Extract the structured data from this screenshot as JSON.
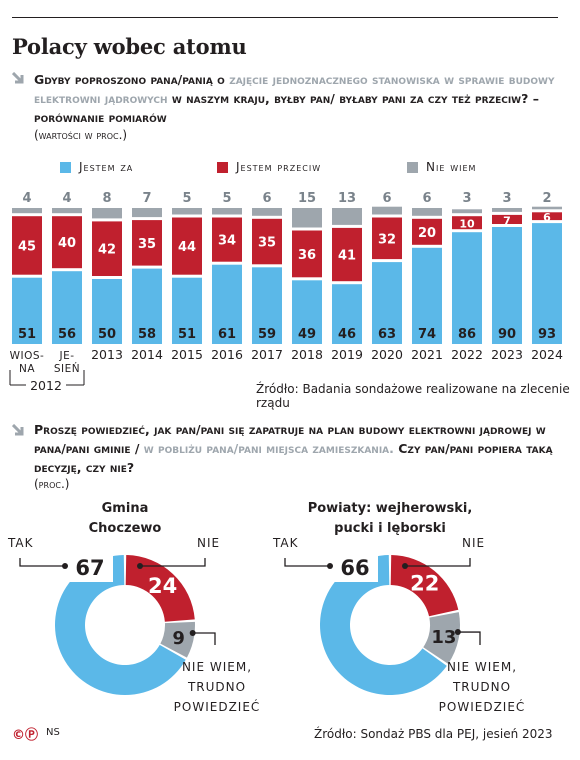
{
  "title": "Polacy wobec atomu",
  "q1": {
    "text_a": "Gdyby poproszono pana/panią o ",
    "text_hl": "zajęcie jednoznacznego stanowiska w sprawie budowy elektrowni jądrowych",
    "text_b": " w naszym kraju, byłby pan/ byłaby pani za czy też przeciw? – porównanie pomiarów",
    "sub": "(wartości w proc.)"
  },
  "legend": [
    {
      "label": "Jestem za",
      "color": "#5bb8e8"
    },
    {
      "label": "Jestem przeciw",
      "color": "#c0202e"
    },
    {
      "label": "Nie wiem",
      "color": "#9ea6ad"
    }
  ],
  "colors": {
    "za": "#5bb8e8",
    "przeciw": "#c0202e",
    "niewiem": "#9ea6ad"
  },
  "chart_data": [
    {
      "type": "bar",
      "stacked": true,
      "title": "Gdyby poproszono pana/panią o zajęcie jednoznacznego stanowiska w sprawie budowy elektrowni jądrowych w naszym kraju, byłby pan/ byłaby pani za czy też przeciw? – porównanie pomiarów",
      "ylabel": "(wartości w proc.)",
      "categories": [
        "wiosna 2012",
        "jesień 2012",
        "2013",
        "2014",
        "2015",
        "2016",
        "2017",
        "2018",
        "2019",
        "2020",
        "2021",
        "2022",
        "2023",
        "2024"
      ],
      "tick_labels": [
        "WIOS-\nNA",
        "JE-\nSIEŃ",
        "2013",
        "2014",
        "2015",
        "2016",
        "2017",
        "2018",
        "2019",
        "2020",
        "2021",
        "2022",
        "2023",
        "2024"
      ],
      "group_label": "2012",
      "series": [
        {
          "name": "Jestem za",
          "values": [
            51,
            56,
            50,
            58,
            51,
            61,
            59,
            49,
            46,
            63,
            74,
            86,
            90,
            93
          ]
        },
        {
          "name": "Jestem przeciw",
          "values": [
            45,
            40,
            42,
            35,
            44,
            34,
            35,
            36,
            41,
            32,
            20,
            10,
            7,
            6
          ]
        },
        {
          "name": "Nie wiem",
          "values": [
            4,
            4,
            8,
            7,
            5,
            5,
            6,
            15,
            13,
            6,
            6,
            3,
            3,
            2
          ]
        }
      ],
      "ylim": [
        0,
        100
      ],
      "grid": false,
      "legend": "top"
    },
    {
      "type": "pie",
      "donut": true,
      "title": "Gmina Choczewo",
      "labels": [
        "Tak",
        "Nie",
        "Nie wiem, trudno powiedzieć"
      ],
      "values": [
        67,
        24,
        9
      ]
    },
    {
      "type": "pie",
      "donut": true,
      "title": "Powiaty: wejherowski, pucki i lęborski",
      "labels": [
        "Tak",
        "Nie",
        "Nie wiem, trudno powiedzieć"
      ],
      "values": [
        66,
        22,
        13
      ]
    }
  ],
  "source1": "Źródło: Badania sondażowe realizowane na zlecenie rządu",
  "q2": {
    "text_a": "Proszę powiedzieć, jak pan/pani się zapatruje na plan budowy elektrowni jądrowej w pana/pani gminie / ",
    "text_hl": "w pobliżu pana/pani miejsca zamieszkania.",
    "text_b": " Czy pan/pani popiera taką decyzję, czy nie?",
    "sub": "(proc.)"
  },
  "donut_titles": [
    [
      "Gmina",
      "Choczewo"
    ],
    [
      "Powiaty: wejherowski,",
      "pucki i lęborski"
    ]
  ],
  "donut_labels": {
    "tak": "Tak",
    "nie": "Nie",
    "niewiem": [
      "Nie wiem,",
      "trudno",
      "powiedzieć"
    ]
  },
  "source2": "Źródło: Sondaż PBS dla PEJ, jesień 2023",
  "footer": {
    "logo": "©Ⓟ",
    "initials": "NS"
  }
}
